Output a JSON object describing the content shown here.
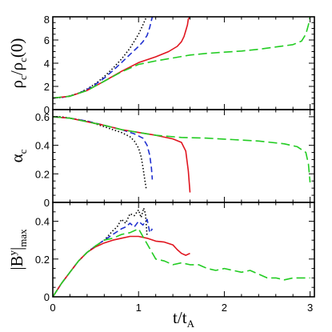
{
  "chart_data": [
    {
      "type": "line",
      "panel": "top",
      "ylabel_parts": [
        "ρ",
        "c",
        "/ρ",
        "c",
        "(0)"
      ],
      "ylim": [
        0,
        8
      ],
      "yticks": [
        0,
        2,
        4,
        6,
        8
      ],
      "xlim": [
        0,
        3.05
      ],
      "xticks": [
        0,
        1,
        2,
        3
      ],
      "series": [
        {
          "color": "#000000",
          "dash": "1.5,2.5",
          "x": [
            0,
            0.1,
            0.2,
            0.3,
            0.4,
            0.5,
            0.6,
            0.7,
            0.8,
            0.9,
            1.0,
            1.05,
            1.08,
            1.1
          ],
          "y": [
            1.0,
            1.04,
            1.18,
            1.42,
            1.78,
            2.25,
            2.85,
            3.55,
            4.35,
            5.3,
            6.5,
            7.3,
            7.8,
            8.0
          ]
        },
        {
          "color": "#1f2fd0",
          "dash": "7,4",
          "x": [
            0,
            0.1,
            0.2,
            0.3,
            0.4,
            0.5,
            0.6,
            0.7,
            0.8,
            0.9,
            1.0,
            1.05,
            1.1,
            1.13,
            1.16
          ],
          "y": [
            1.0,
            1.04,
            1.17,
            1.4,
            1.74,
            2.18,
            2.72,
            3.35,
            4.05,
            4.75,
            5.45,
            5.85,
            6.4,
            7.1,
            8.0
          ]
        },
        {
          "color": "#e0141e",
          "dash": "",
          "x": [
            0,
            0.2,
            0.4,
            0.6,
            0.8,
            1.0,
            1.2,
            1.35,
            1.45,
            1.5,
            1.53,
            1.55,
            1.57,
            1.58,
            1.6
          ],
          "y": [
            1.0,
            1.15,
            1.65,
            2.45,
            3.3,
            4.05,
            4.55,
            5.0,
            5.45,
            5.85,
            6.3,
            6.8,
            7.3,
            7.8,
            8.0
          ]
        },
        {
          "color": "#22cc22",
          "dash": "11,5",
          "x": [
            0,
            0.2,
            0.4,
            0.6,
            0.8,
            1.0,
            1.2,
            1.4,
            1.6,
            1.8,
            2.0,
            2.2,
            2.4,
            2.6,
            2.8,
            2.9,
            2.95,
            2.98,
            3.0
          ],
          "y": [
            1.0,
            1.15,
            1.65,
            2.45,
            3.25,
            3.9,
            4.2,
            4.45,
            4.7,
            4.85,
            4.95,
            5.05,
            5.2,
            5.4,
            5.6,
            5.9,
            6.5,
            7.3,
            8.0
          ]
        }
      ]
    },
    {
      "type": "line",
      "panel": "middle",
      "ylabel_parts": [
        "α",
        "c"
      ],
      "ylim": [
        0,
        0.65
      ],
      "yticks": [
        0,
        0.2,
        0.4,
        0.6
      ],
      "ytick_labels": [
        "0",
        "0.2",
        "0.4",
        "0.6"
      ],
      "xlim": [
        0,
        3.05
      ],
      "xticks": [
        0,
        1,
        2,
        3
      ],
      "series": [
        {
          "color": "#000000",
          "dash": "1.5,2.5",
          "x": [
            0,
            0.1,
            0.2,
            0.4,
            0.6,
            0.8,
            0.9,
            0.95,
            1.0,
            1.03,
            1.05,
            1.07,
            1.09
          ],
          "y": [
            0.6,
            0.6,
            0.59,
            0.57,
            0.53,
            0.49,
            0.46,
            0.43,
            0.38,
            0.32,
            0.25,
            0.17,
            0.09
          ]
        },
        {
          "color": "#1f2fd0",
          "dash": "7,4",
          "x": [
            0,
            0.2,
            0.4,
            0.6,
            0.8,
            0.95,
            1.05,
            1.1,
            1.13,
            1.15,
            1.16
          ],
          "y": [
            0.6,
            0.59,
            0.57,
            0.54,
            0.51,
            0.48,
            0.45,
            0.4,
            0.33,
            0.24,
            0.16
          ]
        },
        {
          "color": "#e0141e",
          "dash": "",
          "x": [
            0,
            0.2,
            0.4,
            0.6,
            0.8,
            1.0,
            1.2,
            1.4,
            1.5,
            1.55,
            1.58,
            1.6
          ],
          "y": [
            0.6,
            0.59,
            0.565,
            0.54,
            0.51,
            0.49,
            0.47,
            0.445,
            0.42,
            0.36,
            0.22,
            0.07
          ]
        },
        {
          "color": "#22cc22",
          "dash": "11,5",
          "x": [
            0,
            0.2,
            0.4,
            0.6,
            0.8,
            1.0,
            1.2,
            1.5,
            1.8,
            2.1,
            2.4,
            2.7,
            2.85,
            2.95,
            2.98,
            3.0
          ],
          "y": [
            0.6,
            0.59,
            0.565,
            0.54,
            0.51,
            0.49,
            0.47,
            0.455,
            0.45,
            0.44,
            0.43,
            0.41,
            0.39,
            0.35,
            0.27,
            0.14
          ]
        }
      ]
    },
    {
      "type": "line",
      "panel": "bottom",
      "ylabel_parts": [
        "|B",
        "y",
        "|",
        "max"
      ],
      "ylim": [
        0,
        0.5
      ],
      "yticks": [
        0,
        0.2,
        0.4
      ],
      "ytick_labels": [
        "0",
        "0.2",
        "0.4"
      ],
      "xlim": [
        0,
        3.05
      ],
      "xticks": [
        0,
        1,
        2,
        3
      ],
      "xtick_labels": [
        "0",
        "1",
        "2",
        "3"
      ],
      "xlabel_parts": [
        "t/t",
        "A"
      ],
      "series": [
        {
          "color": "#000000",
          "dash": "1.5,2.5",
          "x": [
            0,
            0.1,
            0.2,
            0.3,
            0.4,
            0.5,
            0.6,
            0.7,
            0.75,
            0.8,
            0.85,
            0.9,
            0.95,
            1.0,
            1.03,
            1.06,
            1.08,
            1.1
          ],
          "y": [
            0,
            0.07,
            0.13,
            0.19,
            0.235,
            0.27,
            0.3,
            0.35,
            0.37,
            0.41,
            0.39,
            0.44,
            0.43,
            0.46,
            0.42,
            0.47,
            0.44,
            0.32
          ]
        },
        {
          "color": "#1f2fd0",
          "dash": "7,4",
          "x": [
            0,
            0.1,
            0.2,
            0.3,
            0.4,
            0.5,
            0.6,
            0.7,
            0.8,
            0.85,
            0.9,
            0.95,
            1.0,
            1.05,
            1.1,
            1.13,
            1.16
          ],
          "y": [
            0,
            0.07,
            0.13,
            0.19,
            0.235,
            0.27,
            0.3,
            0.33,
            0.36,
            0.37,
            0.39,
            0.37,
            0.4,
            0.38,
            0.41,
            0.34,
            0.36
          ]
        },
        {
          "color": "#e0141e",
          "dash": "",
          "x": [
            0,
            0.1,
            0.2,
            0.3,
            0.4,
            0.5,
            0.6,
            0.7,
            0.8,
            0.9,
            1.0,
            1.1,
            1.2,
            1.3,
            1.4,
            1.45,
            1.5,
            1.55,
            1.6
          ],
          "y": [
            0,
            0.07,
            0.13,
            0.19,
            0.235,
            0.265,
            0.285,
            0.3,
            0.31,
            0.32,
            0.32,
            0.31,
            0.295,
            0.29,
            0.275,
            0.25,
            0.23,
            0.22,
            0.23
          ]
        },
        {
          "color": "#22cc22",
          "dash": "11,5",
          "x": [
            0,
            0.1,
            0.2,
            0.3,
            0.4,
            0.5,
            0.6,
            0.7,
            0.8,
            0.9,
            1.0,
            1.1,
            1.2,
            1.3,
            1.4,
            1.5,
            1.6,
            1.7,
            1.8,
            1.9,
            2.0,
            2.1,
            2.2,
            2.3,
            2.4,
            2.5,
            2.6,
            2.7,
            2.8,
            2.9,
            3.0
          ],
          "y": [
            0,
            0.07,
            0.13,
            0.19,
            0.235,
            0.27,
            0.3,
            0.31,
            0.33,
            0.34,
            0.36,
            0.28,
            0.2,
            0.19,
            0.17,
            0.18,
            0.17,
            0.17,
            0.15,
            0.14,
            0.15,
            0.14,
            0.13,
            0.14,
            0.12,
            0.1,
            0.1,
            0.09,
            0.1,
            0.1,
            0.1
          ]
        }
      ]
    }
  ]
}
